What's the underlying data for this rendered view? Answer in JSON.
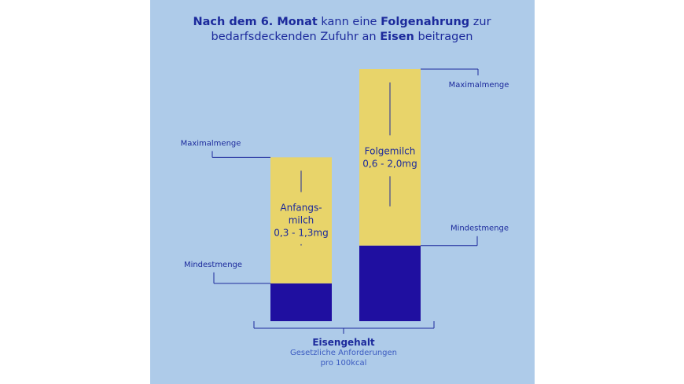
{
  "chart_data": {
    "type": "range-bar",
    "title_lines": [
      [
        {
          "text": "Nach dem 6. Monat",
          "bold": true
        },
        {
          "text": " kann eine ",
          "bold": false
        },
        {
          "text": "Folgenahrung",
          "bold": true
        },
        {
          "text": " zur",
          "bold": false
        }
      ],
      [
        {
          "text": "bedarfsdeckenden Zufuhr an ",
          "bold": false
        },
        {
          "text": "Eisen",
          "bold": true
        },
        {
          "text": " beitragen",
          "bold": false
        }
      ]
    ],
    "ylim": [
      0,
      2.0
    ],
    "min_color": "#1f0fa0",
    "range_color": "#e8d46a",
    "bars": [
      {
        "label_lines": [
          "Anfangs-",
          "milch",
          "0,3 - 1,3mg"
        ],
        "min": 0.3,
        "max": 1.3,
        "min_label": "Mindestmenge",
        "max_label": "Maximalmenge"
      },
      {
        "label_lines": [
          "Folgemilch",
          "0,6 - 2,0mg"
        ],
        "min": 0.6,
        "max": 2.0,
        "min_label": "Mindestmenge",
        "max_label": "Maximalmenge"
      }
    ],
    "x_label": "Eisengehalt",
    "x_notes": [
      "Gesetzliche Anforderungen",
      "pro 100kcal"
    ]
  }
}
